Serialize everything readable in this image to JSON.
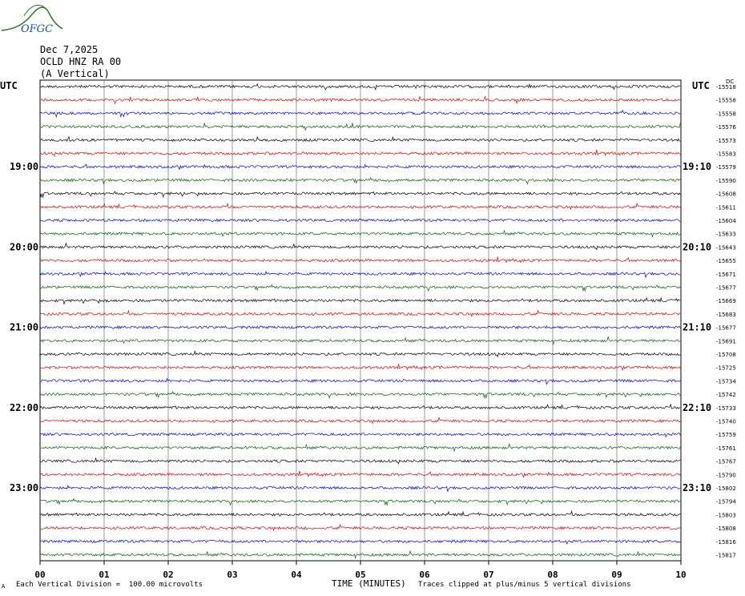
{
  "header": {
    "date": "Dec 7,2025",
    "station": "OCLD HNZ RA 00",
    "component": "(A Vertical)"
  },
  "logo_text": "OFGC",
  "footer": {
    "scale_note": "Each Vertical Division =  100.00 microvolts",
    "clip_note": "Traces clipped at plus/minus 5 vertical divisions",
    "small_mark": "A"
  },
  "colors": {
    "trace": [
      "#000000",
      "#e00000",
      "#0000e0",
      "#006400"
    ],
    "grid": "#808080",
    "logo": "#2a7a2a"
  },
  "chart_data": {
    "type": "line",
    "title": "",
    "xlabel": "TIME (MINUTES)",
    "ylabel": "",
    "xlim": [
      0,
      10
    ],
    "x_ticks": [
      "00",
      "01",
      "02",
      "03",
      "04",
      "05",
      "06",
      "07",
      "08",
      "09",
      "10"
    ],
    "left_axis_title": "UTC",
    "right_axis_title": "UTC",
    "right_top_label": "DC",
    "left_time_labels": [
      "19:00",
      "20:00",
      "21:00",
      "22:00",
      "23:00"
    ],
    "right_time_labels": [
      "19:10",
      "20:10",
      "21:10",
      "22:10",
      "23:10"
    ],
    "traces_per_hour": 6,
    "trace_color_cycle": [
      "black",
      "red",
      "blue",
      "green"
    ],
    "dc_offsets": [
      -15518,
      -15558,
      -15558,
      -15576,
      -15573,
      -15583,
      -15579,
      -15590,
      -15608,
      -15611,
      -15604,
      -15633,
      -15643,
      -15655,
      -15671,
      -15677,
      -15669,
      -15683,
      -15677,
      -15691,
      -15708,
      -15725,
      -15734,
      -15742,
      -15733,
      -15740,
      -15759,
      -15761,
      -15767,
      -15790,
      -15802,
      -15794,
      -15803,
      -15808,
      -15816,
      -15817
    ]
  }
}
